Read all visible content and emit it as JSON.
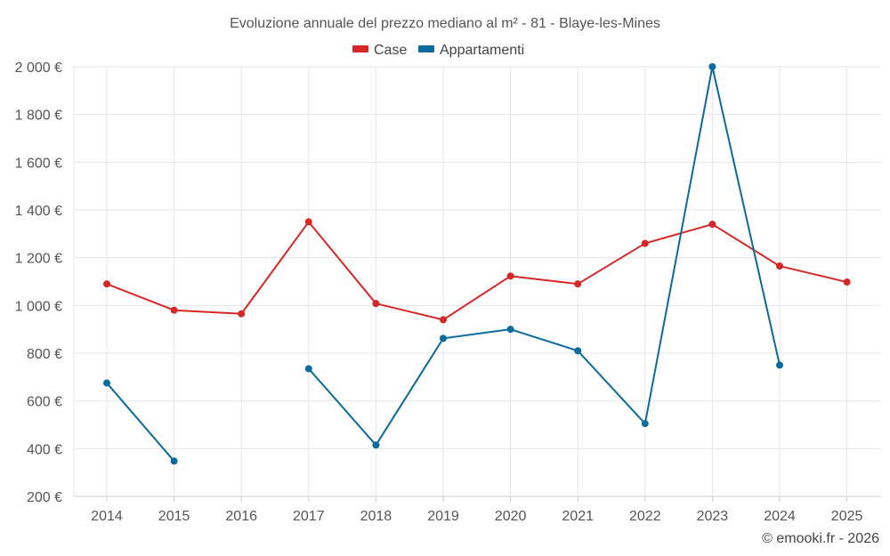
{
  "chart_data": {
    "type": "line",
    "title": "Evoluzione annuale del prezzo mediano al m² - 81 - Blaye-les-Mines",
    "categories": [
      "2014",
      "2015",
      "2016",
      "2017",
      "2018",
      "2019",
      "2020",
      "2021",
      "2022",
      "2023",
      "2024",
      "2025"
    ],
    "y_ticks": [
      200,
      400,
      600,
      800,
      1000,
      1200,
      1400,
      1600,
      1800,
      2000
    ],
    "y_tick_labels": [
      "200 €",
      "400 €",
      "600 €",
      "800 €",
      "1 000 €",
      "1 200 €",
      "1 400 €",
      "1 600 €",
      "1 800 €",
      "2 000 €"
    ],
    "ylim": [
      200,
      2000
    ],
    "grid": true,
    "legend_position": "top-center",
    "series": [
      {
        "name": "Case",
        "color": "#d62728",
        "values": [
          1090,
          980,
          965,
          1350,
          1008,
          940,
          1123,
          1090,
          1260,
          1340,
          1165,
          1098
        ]
      },
      {
        "name": "Appartamenti",
        "color": "#0b6a9e",
        "values": [
          675,
          348,
          null,
          735,
          415,
          862,
          900,
          810,
          505,
          2000,
          750,
          null
        ]
      }
    ]
  },
  "credit": "© emooki.fr - 2026"
}
